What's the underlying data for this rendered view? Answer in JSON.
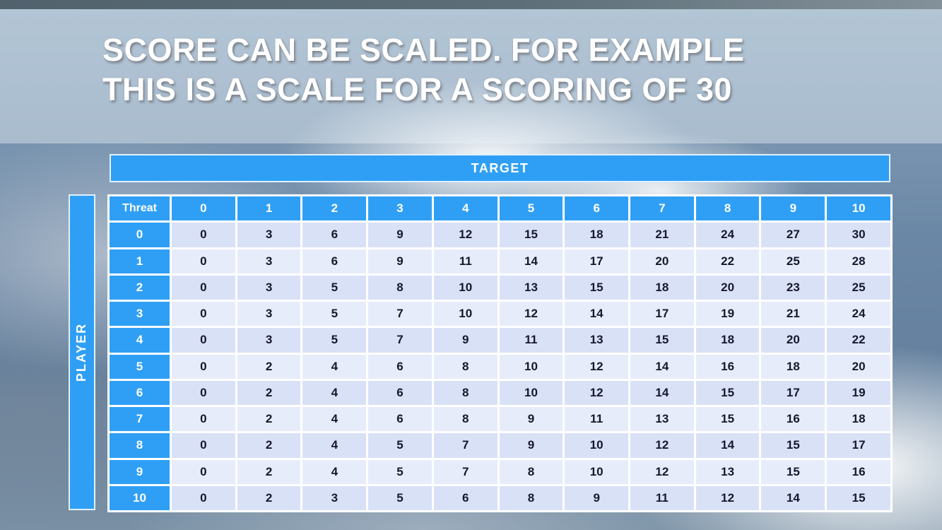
{
  "title": {
    "line1": "SCORE CAN BE SCALED. FOR EXAMPLE",
    "line2": "THIS IS A SCALE FOR A SCORING OF 30"
  },
  "table": {
    "target_label": "TARGET",
    "player_label": "PLAYER",
    "corner_label": "Threat",
    "column_headers": [
      "0",
      "1",
      "2",
      "3",
      "4",
      "5",
      "6",
      "7",
      "8",
      "9",
      "10"
    ],
    "row_headers": [
      "0",
      "1",
      "2",
      "3",
      "4",
      "5",
      "6",
      "7",
      "8",
      "9",
      "10"
    ]
  },
  "chart_data": {
    "type": "table",
    "title": "Score scale for a scoring of 30",
    "x_axis_label": "TARGET",
    "y_axis_label": "PLAYER",
    "corner_label": "Threat",
    "columns": [
      0,
      1,
      2,
      3,
      4,
      5,
      6,
      7,
      8,
      9,
      10
    ],
    "row_labels": [
      0,
      1,
      2,
      3,
      4,
      5,
      6,
      7,
      8,
      9,
      10
    ],
    "rows": [
      [
        0,
        3,
        6,
        9,
        12,
        15,
        18,
        21,
        24,
        27,
        30
      ],
      [
        0,
        3,
        6,
        9,
        11,
        14,
        17,
        20,
        22,
        25,
        28
      ],
      [
        0,
        3,
        5,
        8,
        10,
        13,
        15,
        18,
        20,
        23,
        25
      ],
      [
        0,
        3,
        5,
        7,
        10,
        12,
        14,
        17,
        19,
        21,
        24
      ],
      [
        0,
        3,
        5,
        7,
        9,
        11,
        13,
        15,
        18,
        20,
        22
      ],
      [
        0,
        2,
        4,
        6,
        8,
        10,
        12,
        14,
        16,
        18,
        20
      ],
      [
        0,
        2,
        4,
        6,
        8,
        10,
        12,
        14,
        15,
        17,
        19
      ],
      [
        0,
        2,
        4,
        6,
        8,
        9,
        11,
        13,
        15,
        16,
        18
      ],
      [
        0,
        2,
        4,
        5,
        7,
        9,
        10,
        12,
        14,
        15,
        17
      ],
      [
        0,
        2,
        4,
        5,
        7,
        8,
        10,
        12,
        13,
        15,
        16
      ],
      [
        0,
        2,
        3,
        5,
        6,
        8,
        9,
        11,
        12,
        14,
        15
      ]
    ]
  },
  "colors": {
    "header_blue": "#2f9ff5",
    "row_even": "#d9e1f6",
    "row_odd": "#e7ecfa",
    "cell_text": "#15182e"
  }
}
